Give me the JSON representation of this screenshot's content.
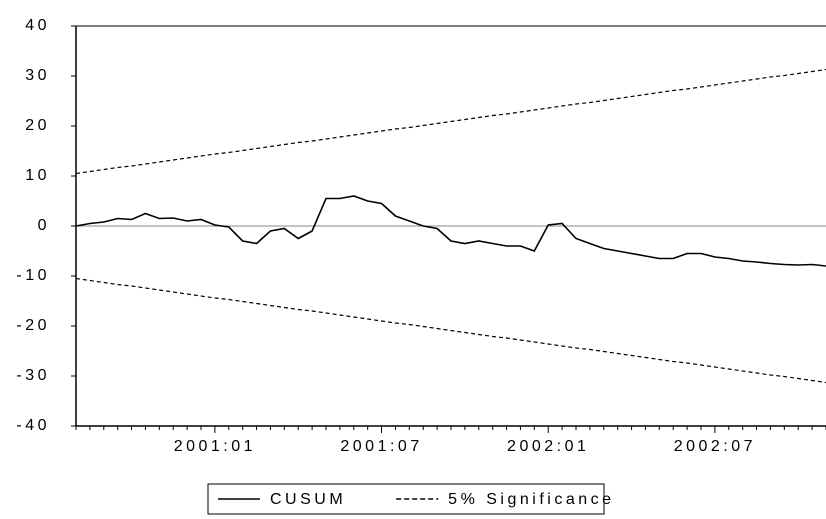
{
  "chart_data": {
    "type": "line",
    "categories": [
      null,
      null,
      null,
      null,
      null,
      null,
      null,
      null,
      null,
      null,
      "2001:01",
      null,
      null,
      null,
      null,
      null,
      null,
      null,
      null,
      null,
      null,
      null,
      "2001:07",
      null,
      null,
      null,
      null,
      null,
      null,
      null,
      null,
      null,
      null,
      null,
      "2002:01",
      null,
      null,
      null,
      null,
      null,
      null,
      null,
      null,
      null,
      null,
      null,
      "2002:07",
      null,
      null,
      null,
      null,
      null,
      null,
      null,
      null
    ],
    "series": [
      {
        "name": "CUSUM",
        "color": "#000000",
        "dash": "solid",
        "values": [
          0,
          0.5,
          0.8,
          1.5,
          1.3,
          2.5,
          1.5,
          1.6,
          1.0,
          1.3,
          0.2,
          -0.2,
          -3,
          -3.5,
          -1,
          -0.5,
          -2.5,
          -1,
          5.5,
          5.5,
          6,
          5,
          4.5,
          2,
          1,
          0,
          -0.5,
          -3,
          -3.5,
          -3,
          -3.5,
          -4,
          -4,
          -5,
          0.2,
          0.5,
          -2.5,
          -3.5,
          -4.5,
          -5,
          -5.5,
          -6,
          -6.5,
          -6.5,
          -5.5,
          -5.5,
          -6.2,
          -6.5,
          -7,
          -7.2,
          -7.5,
          -7.7,
          -7.8,
          -7.7,
          -8
        ]
      },
      {
        "name": "5% Significance",
        "color": "#000000",
        "dash": "dashed",
        "values": [
          10.5,
          10.9,
          11.3,
          11.7,
          12.0,
          12.4,
          12.8,
          13.2,
          13.6,
          14.0,
          14.4,
          14.7,
          15.1,
          15.5,
          15.9,
          16.3,
          16.7,
          17.0,
          17.4,
          17.8,
          18.2,
          18.6,
          19.0,
          19.4,
          19.7,
          20.1,
          20.5,
          20.9,
          21.3,
          21.7,
          22.1,
          22.4,
          22.8,
          23.2,
          23.6,
          24.0,
          24.4,
          24.7,
          25.1,
          25.5,
          25.9,
          26.3,
          26.7,
          27.1,
          27.4,
          27.8,
          28.2,
          28.6,
          29.0,
          29.4,
          29.8,
          30.1,
          30.5,
          30.9,
          31.3
        ]
      },
      {
        "name": "5% Significance",
        "color": "#000000",
        "dash": "dashed",
        "values": [
          -10.5,
          -10.9,
          -11.3,
          -11.7,
          -12.0,
          -12.4,
          -12.8,
          -13.2,
          -13.6,
          -14.0,
          -14.4,
          -14.7,
          -15.1,
          -15.5,
          -15.9,
          -16.3,
          -16.7,
          -17.0,
          -17.4,
          -17.8,
          -18.2,
          -18.6,
          -19.0,
          -19.4,
          -19.7,
          -20.1,
          -20.5,
          -20.9,
          -21.3,
          -21.7,
          -22.1,
          -22.4,
          -22.8,
          -23.2,
          -23.6,
          -24.0,
          -24.4,
          -24.7,
          -25.1,
          -25.5,
          -25.9,
          -26.3,
          -26.7,
          -27.1,
          -27.4,
          -27.8,
          -28.2,
          -28.6,
          -29.0,
          -29.4,
          -29.8,
          -30.1,
          -30.5,
          -30.9,
          -31.3
        ]
      }
    ],
    "ylim": [
      -40,
      40
    ],
    "yticks": [
      -40,
      -30,
      -20,
      -10,
      0,
      10,
      20,
      30,
      40
    ],
    "zero_line": true,
    "legend": "bottom"
  }
}
